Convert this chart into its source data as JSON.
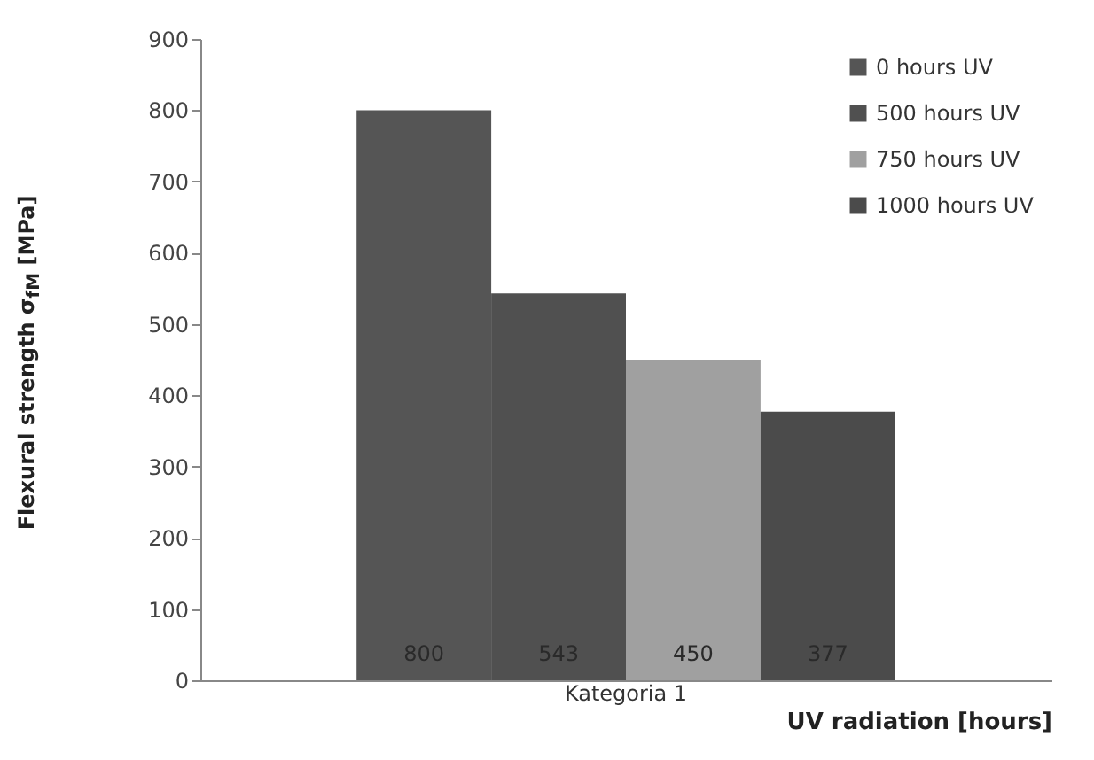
{
  "chart_data": {
    "type": "bar",
    "categories": [
      "Kategoria 1"
    ],
    "series": [
      {
        "name": "0 hours UV",
        "color": "#555555",
        "values": [
          800
        ]
      },
      {
        "name": "500 hours UV",
        "color": "#505050",
        "values": [
          543
        ]
      },
      {
        "name": "750 hours UV",
        "color": "#a0a0a0",
        "values": [
          450
        ]
      },
      {
        "name": "1000 hours UV",
        "color": "#4b4b4b",
        "values": [
          377
        ]
      }
    ],
    "ylabel": "Flexural strength σ$_{fM}$ [MPa]",
    "xlabel": "UV radiation [hours]",
    "ylim": [
      0,
      900
    ],
    "yticks": [
      0,
      100,
      200,
      300,
      400,
      500,
      600,
      700,
      800,
      900
    ],
    "data_labels": true,
    "legend": "top right"
  }
}
